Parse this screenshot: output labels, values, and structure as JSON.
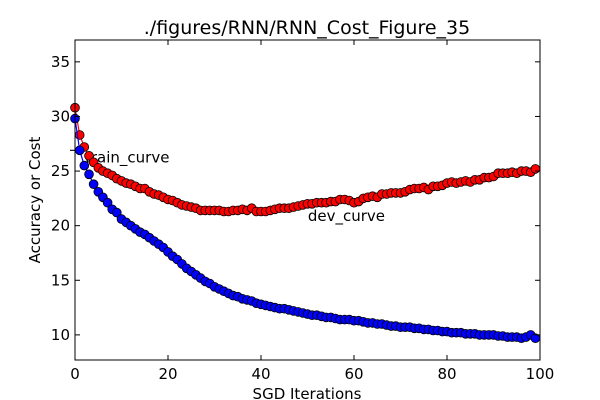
{
  "chart_data": {
    "type": "line",
    "title": "./figures/RNN/RNN_Cost_Figure_35",
    "xlabel": "SGD Iterations",
    "ylabel": "Accuracy or Cost",
    "xlim": [
      0,
      100
    ],
    "ylim": [
      7.7,
      37
    ],
    "xticks": [
      0,
      20,
      40,
      60,
      80,
      100
    ],
    "yticks": [
      10,
      15,
      20,
      25,
      30,
      35
    ],
    "grid": false,
    "legend": "none",
    "x": [
      0,
      1,
      2,
      3,
      4,
      5,
      6,
      7,
      8,
      9,
      10,
      11,
      12,
      13,
      14,
      15,
      16,
      17,
      18,
      19,
      20,
      21,
      22,
      23,
      24,
      25,
      26,
      27,
      28,
      29,
      30,
      31,
      32,
      33,
      34,
      35,
      36,
      37,
      38,
      39,
      40,
      41,
      42,
      43,
      44,
      45,
      46,
      47,
      48,
      49,
      50,
      51,
      52,
      53,
      54,
      55,
      56,
      57,
      58,
      59,
      60,
      61,
      62,
      63,
      64,
      65,
      66,
      67,
      68,
      69,
      70,
      71,
      72,
      73,
      74,
      75,
      76,
      77,
      78,
      79,
      80,
      81,
      82,
      83,
      84,
      85,
      86,
      87,
      88,
      89,
      90,
      91,
      92,
      93,
      94,
      95,
      96,
      97,
      98,
      99
    ],
    "series": [
      {
        "color": "#ff0000",
        "values": [
          30.8,
          28.3,
          27.2,
          26.4,
          25.8,
          25.3,
          25.0,
          24.8,
          24.6,
          24.3,
          24.1,
          23.9,
          23.8,
          23.6,
          23.4,
          23.4,
          23.1,
          22.9,
          22.8,
          22.6,
          22.4,
          22.3,
          22.1,
          21.9,
          21.8,
          21.7,
          21.6,
          21.4,
          21.4,
          21.4,
          21.4,
          21.4,
          21.3,
          21.3,
          21.4,
          21.4,
          21.5,
          21.4,
          21.6,
          21.3,
          21.3,
          21.3,
          21.4,
          21.5,
          21.6,
          21.6,
          21.6,
          21.7,
          21.8,
          21.9,
          22.0,
          22.0,
          22.1,
          22.1,
          22.1,
          22.2,
          22.2,
          22.4,
          22.4,
          22.3,
          22.1,
          22.2,
          22.5,
          22.6,
          22.7,
          22.6,
          22.9,
          22.9,
          23.0,
          23.0,
          23.0,
          23.1,
          23.3,
          23.4,
          23.4,
          23.5,
          23.3,
          23.6,
          23.6,
          23.7,
          23.9,
          24.0,
          23.9,
          24.0,
          24.1,
          24.0,
          24.2,
          24.2,
          24.4,
          24.4,
          24.5,
          24.8,
          24.8,
          24.8,
          24.9,
          24.8,
          25.0,
          25.0,
          24.9,
          25.2
        ],
        "annotation": {
          "text": "dev_curve",
          "x": 49,
          "y": 22
        }
      },
      {
        "color": "#0000ff",
        "values": [
          29.8,
          26.9,
          25.5,
          24.7,
          23.8,
          23.1,
          22.6,
          22.1,
          21.5,
          21.2,
          20.6,
          20.3,
          20.0,
          19.7,
          19.4,
          19.2,
          18.9,
          18.6,
          18.3,
          18.0,
          17.6,
          17.2,
          16.9,
          16.5,
          16.1,
          15.8,
          15.5,
          15.2,
          14.9,
          14.7,
          14.4,
          14.2,
          14.0,
          13.8,
          13.6,
          13.5,
          13.3,
          13.2,
          13.1,
          12.9,
          12.8,
          12.7,
          12.6,
          12.5,
          12.4,
          12.4,
          12.3,
          12.2,
          12.1,
          12.0,
          11.9,
          11.8,
          11.8,
          11.7,
          11.6,
          11.6,
          11.5,
          11.4,
          11.4,
          11.4,
          11.3,
          11.3,
          11.2,
          11.1,
          11.1,
          11.0,
          11.0,
          10.9,
          10.8,
          10.8,
          10.7,
          10.7,
          10.7,
          10.6,
          10.6,
          10.5,
          10.5,
          10.4,
          10.4,
          10.3,
          10.3,
          10.2,
          10.2,
          10.2,
          10.1,
          10.1,
          10.1,
          10.0,
          10.0,
          10.0,
          10.0,
          9.9,
          9.9,
          9.8,
          9.8,
          9.8,
          9.7,
          9.8,
          10.0,
          9.7
        ],
        "annotation": {
          "text": "train_curve",
          "x": 0,
          "y": 26.9
        }
      }
    ]
  }
}
